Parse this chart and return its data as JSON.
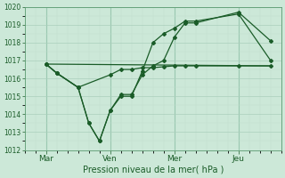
{
  "xlabel": "Pression niveau de la mer( hPa )",
  "ylim": [
    1012,
    1020
  ],
  "yticks": [
    1012,
    1013,
    1014,
    1015,
    1016,
    1017,
    1018,
    1019,
    1020
  ],
  "xtick_labels": [
    "Mar",
    "Ven",
    "Mer",
    "Jeu"
  ],
  "xtick_positions": [
    1,
    4,
    7,
    10
  ],
  "xlim": [
    0,
    12
  ],
  "bg_color": "#cce8d8",
  "grid_color_major": "#aacfbc",
  "grid_color_minor": "#c0dece",
  "line_color": "#1a5c28",
  "vline_color": "#7ab898",
  "line1_x": [
    1,
    1.5,
    2.5,
    4,
    4.5,
    5,
    5.5,
    6,
    6.5,
    7,
    7.5,
    8,
    10,
    11.5
  ],
  "line1_y": [
    1016.8,
    1016.3,
    1015.5,
    1016.2,
    1016.5,
    1016.5,
    1016.6,
    1016.6,
    1016.65,
    1016.7,
    1016.7,
    1016.7,
    1016.7,
    1016.7
  ],
  "line2_x": [
    1,
    1.5,
    2.5,
    3,
    3.5,
    4,
    4.5,
    5,
    5.5,
    6,
    6.5,
    7,
    7.5,
    8,
    10,
    11.5
  ],
  "line2_y": [
    1016.8,
    1016.3,
    1015.5,
    1013.5,
    1012.5,
    1014.2,
    1015.1,
    1015.1,
    1016.2,
    1016.7,
    1017.0,
    1018.3,
    1019.1,
    1019.1,
    1019.7,
    1018.1
  ],
  "line3_x": [
    1,
    1.5,
    2.5,
    3,
    3.5,
    4,
    4.5,
    5,
    5.5,
    6,
    6.5,
    7,
    7.5,
    8,
    10,
    11.5
  ],
  "line3_y": [
    1016.8,
    1016.3,
    1015.5,
    1013.5,
    1012.5,
    1014.2,
    1015.0,
    1015.0,
    1016.4,
    1018.0,
    1018.5,
    1018.8,
    1019.2,
    1019.2,
    1019.6,
    1017.0
  ],
  "line4_x": [
    1,
    11.5
  ],
  "line4_y": [
    1016.8,
    1016.7
  ],
  "vline_positions": [
    1,
    4,
    7,
    10
  ],
  "figsize": [
    3.2,
    2.0
  ],
  "dpi": 100
}
